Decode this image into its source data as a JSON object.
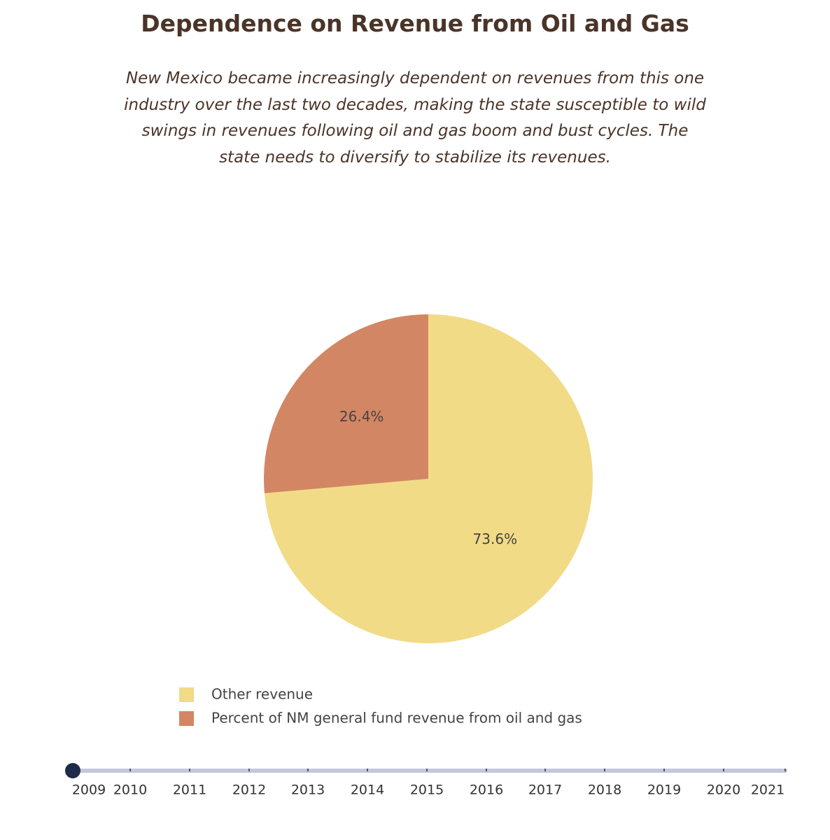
{
  "title": "Dependence on Revenue from Oil and Gas",
  "subtitle": "New Mexico became increasingly dependent on revenues from this one industry over the last two decades, making the state susceptible to wild swings in revenues following oil and gas boom and bust cycles. The state needs to diversify to stabilize its revenues.",
  "colors": {
    "text_dark": "#4a3428",
    "slider_track": "#c5c8db",
    "slider_handle": "#1e2a4a"
  },
  "chart_data": {
    "type": "pie",
    "slices": [
      {
        "name": "Other revenue",
        "value": 73.6,
        "label": "73.6%",
        "color": "#f2db86"
      },
      {
        "name": "Percent of NM general fund revenue from oil and gas",
        "value": 26.4,
        "label": "26.4%",
        "color": "#d38664"
      }
    ],
    "legend": [
      "Other revenue",
      "Percent of NM general fund revenue from oil and gas"
    ],
    "legend_position": "bottom-left"
  },
  "slider": {
    "years": [
      "2009",
      "2010",
      "2011",
      "2012",
      "2013",
      "2014",
      "2015",
      "2016",
      "2017",
      "2018",
      "2019",
      "2020",
      "2021"
    ],
    "selected": "2009"
  }
}
